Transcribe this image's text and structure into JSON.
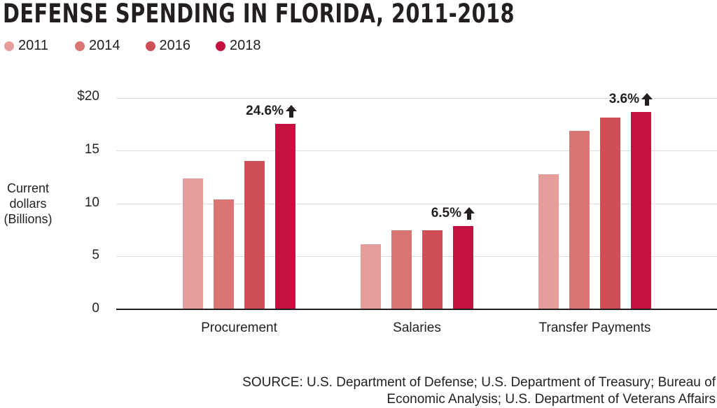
{
  "title": "DEFENSE SPENDING IN FLORIDA, 2011-2018",
  "legend": [
    {
      "label": "2011",
      "color": "#e59e9a"
    },
    {
      "label": "2014",
      "color": "#d97673"
    },
    {
      "label": "2016",
      "color": "#cf4f59"
    },
    {
      "label": "2018",
      "color": "#c4113f"
    }
  ],
  "yaxis": {
    "label_lines": [
      "Current",
      "dollars",
      "(Billions)"
    ],
    "ticks": [
      "$20",
      "15",
      "10",
      "5",
      "0"
    ]
  },
  "categories": [
    "Procurement",
    "Salaries",
    "Transfer Payments"
  ],
  "annotations": [
    "24.6%",
    "6.5%",
    "3.6%"
  ],
  "source_lines": [
    "SOURCE: U.S. Department of Defense; U.S. Department of Treasury; Bureau of",
    "Economic Analysis; U.S. Department of Veterans Affairs"
  ],
  "chart_data": {
    "type": "bar",
    "title": "DEFENSE SPENDING IN FLORIDA, 2011-2018",
    "xlabel": "",
    "ylabel": "Current dollars (Billions)",
    "ylim": [
      0,
      20
    ],
    "yticks": [
      0,
      5,
      10,
      15,
      20
    ],
    "grid": true,
    "legend_position": "top-left",
    "categories": [
      "Procurement",
      "Salaries",
      "Transfer Payments"
    ],
    "series": [
      {
        "name": "2011",
        "color": "#e59e9a",
        "values": [
          12.3,
          6.1,
          12.7
        ]
      },
      {
        "name": "2014",
        "color": "#d97673",
        "values": [
          10.3,
          7.4,
          16.8
        ]
      },
      {
        "name": "2016",
        "color": "#cf4f59",
        "values": [
          14.0,
          7.4,
          18.1
        ]
      },
      {
        "name": "2018",
        "color": "#c4113f",
        "values": [
          17.5,
          7.8,
          18.6
        ]
      }
    ],
    "annotations": [
      {
        "category": "Procurement",
        "text": "24.6% ↑"
      },
      {
        "category": "Salaries",
        "text": "6.5% ↑"
      },
      {
        "category": "Transfer Payments",
        "text": "3.6% ↑"
      }
    ],
    "source": "SOURCE: U.S. Department of Defense; U.S. Department of Treasury; Bureau of Economic Analysis; U.S. Department of Veterans Affairs"
  }
}
